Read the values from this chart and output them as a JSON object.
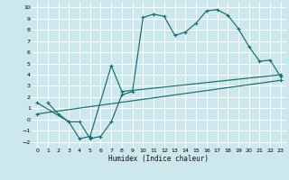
{
  "xlabel": "Humidex (Indice chaleur)",
  "ylabel": "",
  "bg_color": "#cce8ec",
  "grid_color": "#ffffff",
  "line_color": "#1a6b6b",
  "xlim": [
    -0.5,
    23.5
  ],
  "ylim": [
    -2.5,
    10.5
  ],
  "line1_x": [
    1,
    2,
    3,
    4,
    5,
    6,
    7,
    8,
    9,
    10,
    11,
    12,
    13,
    14,
    15,
    16,
    17,
    18,
    19,
    20,
    21,
    22,
    23
  ],
  "line1_y": [
    1.5,
    0.5,
    -0.2,
    -0.2,
    -1.7,
    -1.5,
    -0.2,
    2.2,
    2.5,
    9.1,
    9.4,
    9.2,
    7.5,
    7.8,
    8.6,
    9.7,
    9.8,
    9.3,
    8.1,
    6.5,
    5.2,
    5.3,
    3.8
  ],
  "line2_x": [
    0,
    3,
    4,
    5,
    7,
    8,
    23
  ],
  "line2_y": [
    1.5,
    -0.2,
    -1.7,
    -1.5,
    4.8,
    2.5,
    4.0
  ],
  "line3_x": [
    0,
    23
  ],
  "line3_y": [
    0.5,
    3.5
  ]
}
